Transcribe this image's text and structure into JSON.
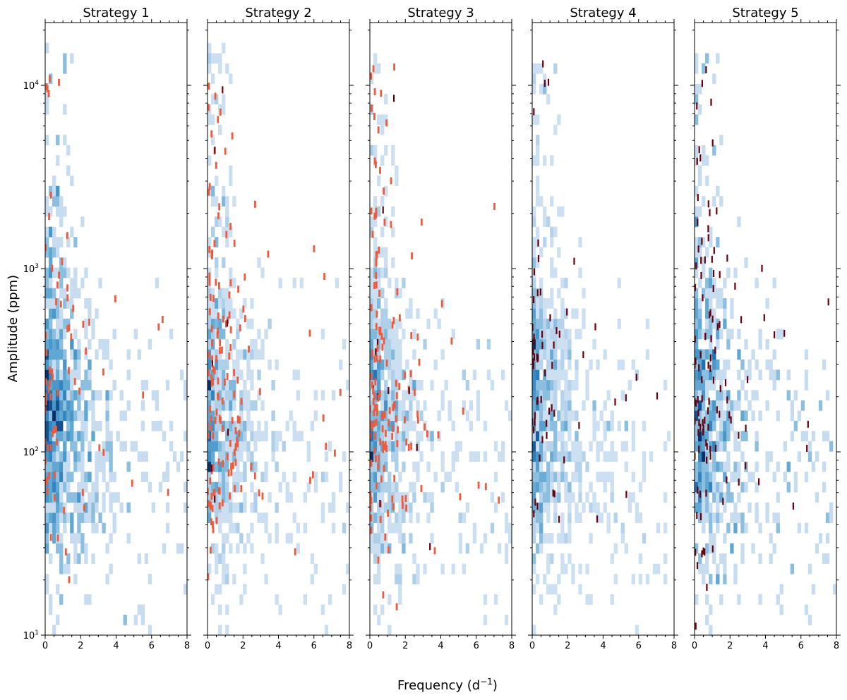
{
  "chart_data": {
    "type": "heatmap",
    "figure_kind": "2D histogram panels with overlaid detection markers",
    "xlabel": "Frequency (d",
    "xlabel_sup": "−1",
    "xlabel_suffix": ")",
    "ylabel": "Amplitude (ppm)",
    "xlim": [
      0,
      8
    ],
    "ylim": [
      10,
      22000
    ],
    "yscale": "log",
    "x_ticks": [
      {
        "value": 0,
        "label": "0"
      },
      {
        "value": 2,
        "label": "2"
      },
      {
        "value": 4,
        "label": "4"
      },
      {
        "value": 6,
        "label": "6"
      },
      {
        "value": 8,
        "label": "8"
      }
    ],
    "y_ticks": [
      {
        "value": 10,
        "base": "10",
        "exp": "1"
      },
      {
        "value": 100,
        "base": "10",
        "exp": "2"
      },
      {
        "value": 1000,
        "base": "10",
        "exp": "3"
      },
      {
        "value": 10000,
        "base": "10",
        "exp": "4"
      }
    ],
    "colormap": "Blues",
    "bins": {
      "x": 40,
      "y": 60
    },
    "colors": {
      "marker_orange": "#ef5a3c",
      "marker_dark": "#67000d",
      "blue_low": "#dfebf7",
      "blue_high": "#08306b"
    },
    "panels": [
      {
        "title": "Strategy 1",
        "marker_color": "orange",
        "dark_fraction": 0.0,
        "n_markers": 70,
        "n_points": 900,
        "seed": 11
      },
      {
        "title": "Strategy 2",
        "marker_color": "orange",
        "dark_fraction": 0.08,
        "n_markers": 150,
        "n_points": 700,
        "seed": 23
      },
      {
        "title": "Strategy 3",
        "marker_color": "orange",
        "dark_fraction": 0.06,
        "n_markers": 160,
        "n_points": 700,
        "seed": 37
      },
      {
        "title": "Strategy 4",
        "marker_color": "dark",
        "dark_fraction": 1.0,
        "n_markers": 60,
        "n_points": 800,
        "seed": 41
      },
      {
        "title": "Strategy 5",
        "marker_color": "dark",
        "dark_fraction": 1.0,
        "n_markers": 110,
        "n_points": 700,
        "seed": 53
      }
    ]
  }
}
